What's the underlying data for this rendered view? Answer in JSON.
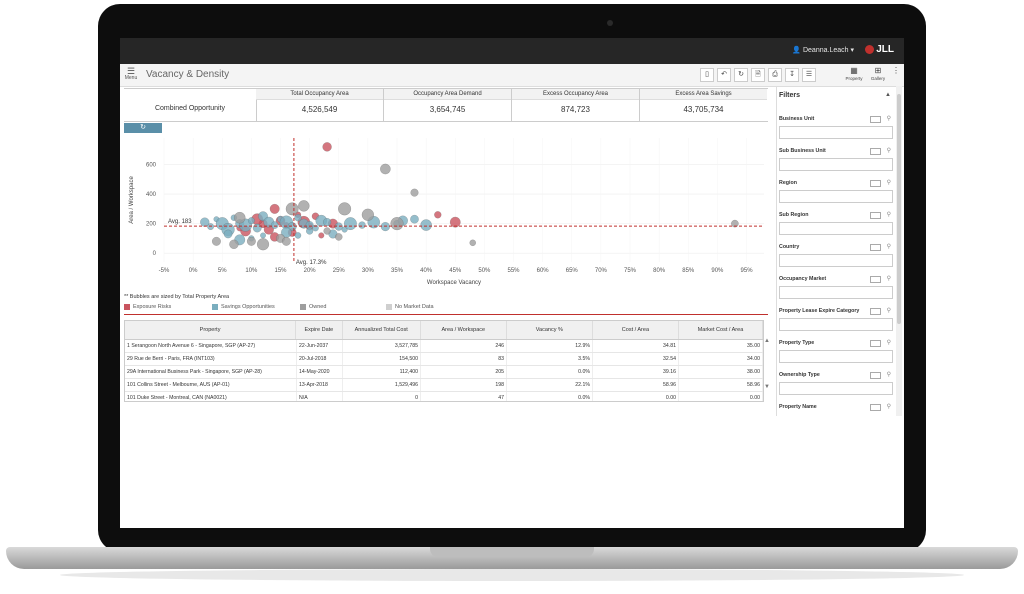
{
  "app": {
    "user": "Deanna.Leach",
    "brand": "JLL",
    "page_title": "Vacancy & Density",
    "menu_label": "Menu",
    "property_label": "Property",
    "gallery_label": "Gallery"
  },
  "summary": {
    "combined_label": "Combined Opportunity",
    "columns": [
      {
        "header": "Total Occupancy Area",
        "value": "4,526,549"
      },
      {
        "header": "Occupancy Area Demand",
        "value": "3,654,745"
      },
      {
        "header": "Excess Occupancy Area",
        "value": "874,723"
      },
      {
        "header": "Excess Area Savings",
        "value": "43,705,734"
      }
    ]
  },
  "chart_data": {
    "type": "scatter",
    "xlabel": "Workspace Vacancy",
    "ylabel": "Area / Workspace",
    "xticks": [
      "-5%",
      "0%",
      "5%",
      "10%",
      "15%",
      "20%",
      "25%",
      "30%",
      "35%",
      "40%",
      "45%",
      "50%",
      "55%",
      "60%",
      "65%",
      "70%",
      "75%",
      "80%",
      "85%",
      "90%",
      "95%"
    ],
    "yticks": [
      "0",
      "200",
      "400",
      "600"
    ],
    "xlim": [
      -5,
      98
    ],
    "ylim": [
      -60,
      780
    ],
    "avg_x": 17.3,
    "avg_y": 183,
    "avg_x_label": "Avg. 17.3%",
    "avg_y_label": "Avg. 183",
    "colors": {
      "exposure": "#c9545f",
      "savings": "#7aaebf",
      "owned": "#9e9e9e",
      "avg_line": "#c0302d"
    },
    "series": [
      {
        "name": "Exposure Risks",
        "points": [
          [
            23,
            720
          ],
          [
            14,
            300
          ],
          [
            18,
            260
          ],
          [
            21,
            250
          ],
          [
            12,
            200
          ],
          [
            15,
            220
          ],
          [
            16,
            190
          ],
          [
            19,
            210
          ],
          [
            13,
            160
          ],
          [
            17,
            140
          ],
          [
            20,
            180
          ],
          [
            11,
            230
          ],
          [
            9,
            150
          ],
          [
            22,
            120
          ],
          [
            14,
            110
          ],
          [
            42,
            260
          ],
          [
            45,
            210
          ],
          [
            8,
            170
          ],
          [
            24,
            200
          ]
        ]
      },
      {
        "name": "Savings Opportunities",
        "points": [
          [
            2,
            210
          ],
          [
            3,
            180
          ],
          [
            4,
            230
          ],
          [
            5,
            200
          ],
          [
            6,
            160
          ],
          [
            7,
            240
          ],
          [
            8,
            200
          ],
          [
            9,
            190
          ],
          [
            10,
            220
          ],
          [
            11,
            170
          ],
          [
            12,
            250
          ],
          [
            13,
            210
          ],
          [
            14,
            190
          ],
          [
            15,
            230
          ],
          [
            16,
            210
          ],
          [
            17,
            180
          ],
          [
            18,
            240
          ],
          [
            19,
            200
          ],
          [
            20,
            190
          ],
          [
            21,
            170
          ],
          [
            22,
            220
          ],
          [
            23,
            210
          ],
          [
            25,
            180
          ],
          [
            26,
            160
          ],
          [
            27,
            200
          ],
          [
            29,
            190
          ],
          [
            31,
            210
          ],
          [
            33,
            180
          ],
          [
            35,
            200
          ],
          [
            36,
            220
          ],
          [
            38,
            230
          ],
          [
            40,
            190
          ],
          [
            16,
            140
          ],
          [
            18,
            120
          ],
          [
            20,
            150
          ],
          [
            24,
            130
          ],
          [
            10,
            100
          ],
          [
            12,
            120
          ],
          [
            6,
            130
          ],
          [
            8,
            90
          ]
        ]
      },
      {
        "name": "Owned",
        "points": [
          [
            33,
            570
          ],
          [
            26,
            300
          ],
          [
            38,
            410
          ],
          [
            4,
            80
          ],
          [
            7,
            60
          ],
          [
            10,
            80
          ],
          [
            12,
            60
          ],
          [
            15,
            100
          ],
          [
            16,
            80
          ],
          [
            25,
            110
          ],
          [
            23,
            150
          ],
          [
            19,
            320
          ],
          [
            48,
            70
          ],
          [
            93,
            200
          ],
          [
            8,
            240
          ],
          [
            30,
            260
          ],
          [
            35,
            200
          ],
          [
            17,
            300
          ]
        ]
      }
    ]
  },
  "chart_note": "** Bubbles are sized by Total Property Area",
  "legend": [
    {
      "label": "Exposure Risks",
      "color": "#c9545f"
    },
    {
      "label": "Savings Opportunities",
      "color": "#7aaebf"
    },
    {
      "label": "Owned",
      "color": "#9e9e9e"
    },
    {
      "label": "No Market Data",
      "color": "#cfcfcf"
    }
  ],
  "table": {
    "headers": [
      "Property",
      "Expire Date",
      "Annualized Total Cost",
      "Area / Workspace",
      "Vacancy %",
      "Cost / Area",
      "Market Cost / Area"
    ],
    "rows": [
      [
        "1 Serangoon North Avenue 6 - Singapore, SGP (AP-27)",
        "22-Jun-2037",
        "3,527,785",
        "246",
        "12.9%",
        "34.81",
        "35.00"
      ],
      [
        "29 Rue de Berri - Paris, FRA (INT103)",
        "20-Jul-2018",
        "154,500",
        "83",
        "3.5%",
        "32.54",
        "34.00"
      ],
      [
        "29A International Business Park - Singapore, SGP (AP-28)",
        "14-May-2020",
        "112,400",
        "205",
        "0.0%",
        "39.16",
        "38.00"
      ],
      [
        "101 Collins Street - Melbourne, AUS (AP-01)",
        "13-Apr-2018",
        "1,529,496",
        "198",
        "22.1%",
        "58.96",
        "58.96"
      ],
      [
        "101 Duke Street - Montreal, CAN (NA0021)",
        "N/A",
        "0",
        "47",
        "0.0%",
        "0.00",
        "0.00"
      ]
    ]
  },
  "filters": {
    "title": "Filters",
    "groups": [
      "Business Unit",
      "Sub Business Unit",
      "Region",
      "Sub Region",
      "Country",
      "Occupancy Market",
      "Property Lease Expire Category",
      "Property Type",
      "Ownership Type",
      "Property Name"
    ]
  }
}
